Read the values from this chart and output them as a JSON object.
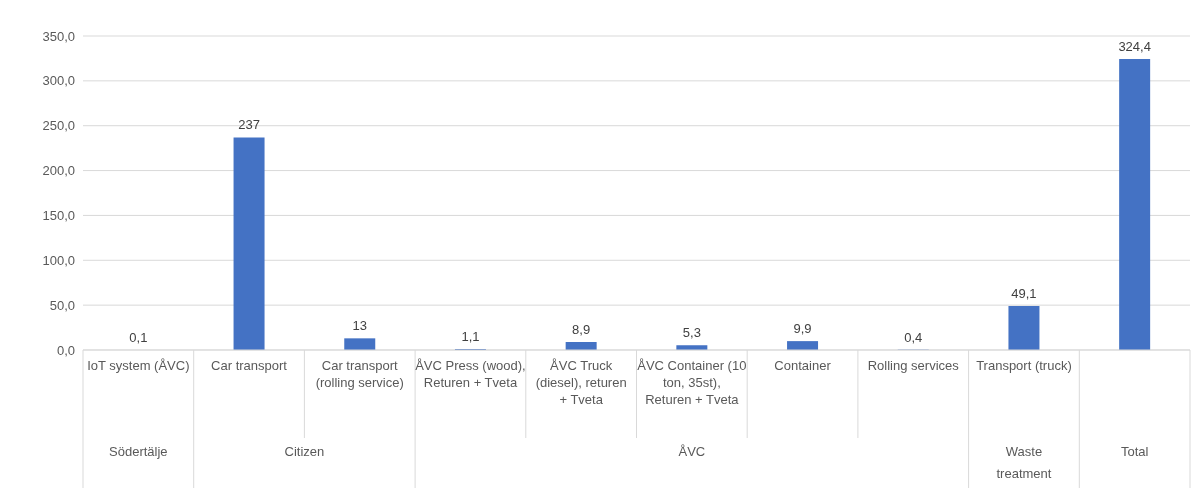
{
  "chart_data": {
    "type": "bar",
    "categories": [
      "IoT system (ÅVC)",
      "Car transport",
      "Car transport (rolling service)",
      "ÅVC Press (wood), Returen + Tveta",
      "ÅVC Truck (diesel), returen + Tveta",
      "ÅVC Container (10 ton, 35st), Returen + Tveta",
      "Container",
      "Rolling services",
      "Transport (truck)",
      null
    ],
    "values": [
      0.1,
      237,
      13,
      1.1,
      8.9,
      5.3,
      9.9,
      0.4,
      49.1,
      324.4
    ],
    "value_labels": [
      "0,1",
      "237",
      "13",
      "1,1",
      "8,9",
      "5,3",
      "9,9",
      "0,4",
      "49,1",
      "324,4"
    ],
    "color": "#4472c4",
    "ylim": [
      0,
      350
    ],
    "yticks": [
      {
        "value": 0,
        "label": "0,0"
      },
      {
        "value": 50,
        "label": "50,0"
      },
      {
        "value": 100,
        "label": "100,0"
      },
      {
        "value": 150,
        "label": "150,0"
      },
      {
        "value": 200,
        "label": "200,0"
      },
      {
        "value": 250,
        "label": "250,0"
      },
      {
        "value": 300,
        "label": "300,0"
      },
      {
        "value": 350,
        "label": "350,0"
      }
    ],
    "grid": "y",
    "annotations": [
      "Södertälje",
      "Citizen",
      "ÅVC",
      "Waste treatment",
      "Total"
    ]
  }
}
